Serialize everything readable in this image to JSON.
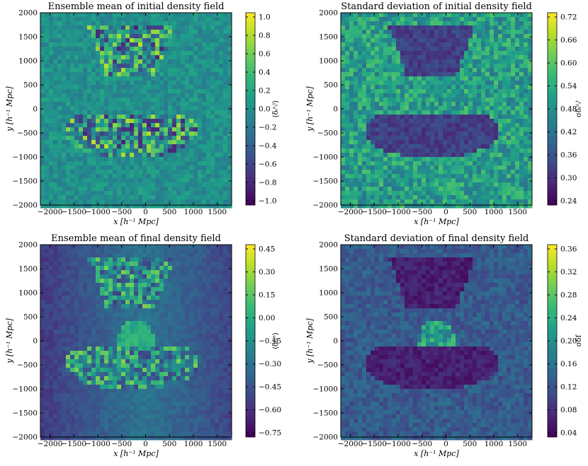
{
  "figure": {
    "panels": [
      {
        "id": "p1",
        "title": "Ensemble mean of initial density field",
        "xlabel": "x [h⁻¹ Mpc]",
        "ylabel": "y [h⁻¹ Mpc]",
        "colorbar_label": "⟨δᵢⁿᵢᵗ⟩",
        "colorbar_ticks": [
          "1.0",
          "0.8",
          "0.6",
          "0.4",
          "0.2",
          "0.0",
          "−0.2",
          "−0.4",
          "−0.6",
          "−0.8",
          "−1.0"
        ]
      },
      {
        "id": "p2",
        "title": "Standard deviation of initial density field",
        "xlabel": "x [h⁻¹ Mpc]",
        "ylabel": "y [h⁻¹ Mpc]",
        "colorbar_label": "σδᵢⁿᵢᵗ",
        "colorbar_ticks": [
          "0.72",
          "0.66",
          "0.60",
          "0.54",
          "0.48",
          "0.42",
          "0.36",
          "0.30",
          "0.24"
        ]
      },
      {
        "id": "p3",
        "title": "Ensemble mean of final density field",
        "xlabel": "x [h⁻¹ Mpc]",
        "ylabel": "y [h⁻¹ Mpc]",
        "colorbar_label": "⟨δfᵢⁿ⟩",
        "colorbar_ticks": [
          "0.45",
          "0.30",
          "0.15",
          "0.00",
          "−0.15",
          "−0.30",
          "−0.45",
          "−0.60",
          "−0.75"
        ]
      },
      {
        "id": "p4",
        "title": "Standard deviation of final density field",
        "xlabel": "x [h⁻¹ Mpc]",
        "ylabel": "y [h⁻¹ Mpc]",
        "colorbar_label": "σδf",
        "colorbar_ticks": [
          "0.36",
          "0.32",
          "0.28",
          "0.24",
          "0.20",
          "0.16",
          "0.12",
          "0.08",
          "0.04"
        ]
      }
    ],
    "x_ticks": [
      "−2000",
      "−1500",
      "−1000",
      "−500",
      "0",
      "500",
      "1000",
      "1500"
    ],
    "y_ticks": [
      "2000",
      "1500",
      "1000",
      "500",
      "0",
      "−500",
      "−1000",
      "−1500",
      "−2000"
    ]
  },
  "chart_data": [
    {
      "type": "heatmap",
      "title": "Ensemble mean of initial density field",
      "xlabel": "x [h⁻¹ Mpc]",
      "ylabel": "y [h⁻¹ Mpc]",
      "xlim": [
        -2200,
        1800
      ],
      "ylim": [
        -2000,
        2000
      ],
      "colorbar": {
        "label": "⟨δᵢⁿᵢᵗ⟩",
        "range": [
          -1.0,
          1.0
        ],
        "colormap": "viridis"
      },
      "background_level": 0.0
    },
    {
      "type": "heatmap",
      "title": "Standard deviation of initial density field",
      "xlabel": "x [h⁻¹ Mpc]",
      "ylabel": "y [h⁻¹ Mpc]",
      "xlim": [
        -2200,
        1800
      ],
      "ylim": [
        -2000,
        2000
      ],
      "colorbar": {
        "label": "σδᵢⁿᵢᵗ",
        "range": [
          0.2,
          0.74
        ],
        "colormap": "viridis"
      },
      "background_level": 0.5,
      "masked_region_level": 0.3
    },
    {
      "type": "heatmap",
      "title": "Ensemble mean of final density field",
      "xlabel": "x [h⁻¹ Mpc]",
      "ylabel": "y [h⁻¹ Mpc]",
      "xlim": [
        -2200,
        1800
      ],
      "ylim": [
        -2000,
        2000
      ],
      "colorbar": {
        "label": "⟨δfᵢⁿ⟩",
        "range": [
          -0.85,
          0.45
        ],
        "colormap": "viridis"
      },
      "background_level": -0.3
    },
    {
      "type": "heatmap",
      "title": "Standard deviation of final density field",
      "xlabel": "x [h⁻¹ Mpc]",
      "ylabel": "y [h⁻¹ Mpc]",
      "xlim": [
        -2200,
        1800
      ],
      "ylim": [
        -2000,
        2000
      ],
      "colorbar": {
        "label": "σδf",
        "range": [
          0.03,
          0.38
        ],
        "colormap": "viridis"
      },
      "background_level": 0.13,
      "masked_region_level": 0.06
    }
  ]
}
